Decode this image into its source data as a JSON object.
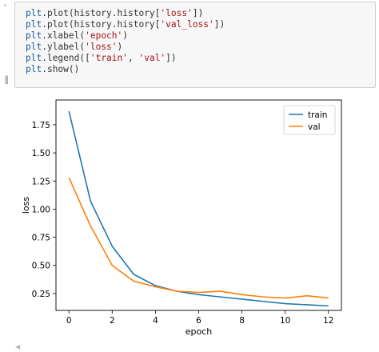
{
  "notebook": {
    "code_cell": {
      "lines": [
        [
          {
            "t": "plt",
            "c": "k"
          },
          {
            "t": ".plot(history.history[",
            "c": "p"
          },
          {
            "t": "'loss'",
            "c": "s"
          },
          {
            "t": "])",
            "c": "p"
          }
        ],
        [
          {
            "t": "plt",
            "c": "k"
          },
          {
            "t": ".plot(history.history[",
            "c": "p"
          },
          {
            "t": "'val_loss'",
            "c": "s"
          },
          {
            "t": "])",
            "c": "p"
          }
        ],
        [
          {
            "t": "plt",
            "c": "k"
          },
          {
            "t": ".xlabel(",
            "c": "p"
          },
          {
            "t": "'epoch'",
            "c": "s"
          },
          {
            "t": ")",
            "c": "p"
          }
        ],
        [
          {
            "t": "plt",
            "c": "k"
          },
          {
            "t": ".ylabel(",
            "c": "p"
          },
          {
            "t": "'loss'",
            "c": "s"
          },
          {
            "t": ")",
            "c": "p"
          }
        ],
        [
          {
            "t": "plt",
            "c": "k"
          },
          {
            "t": ".legend([",
            "c": "p"
          },
          {
            "t": "'train'",
            "c": "s"
          },
          {
            "t": ", ",
            "c": "p"
          },
          {
            "t": "'val'",
            "c": "s"
          },
          {
            "t": "])",
            "c": "p"
          }
        ],
        [
          {
            "t": "plt",
            "c": "k"
          },
          {
            "t": ".show()",
            "c": "p"
          }
        ]
      ]
    },
    "colors": {
      "cell_bg": "#f7f7f7",
      "keyword": "#1a5a9c",
      "string": "#a31515"
    }
  },
  "chart_data": {
    "type": "line",
    "xlabel": "epoch",
    "ylabel": "loss",
    "xlim": [
      -0.6,
      12.6
    ],
    "ylim": [
      0.1,
      1.97
    ],
    "xticks": [
      0,
      2,
      4,
      6,
      8,
      10,
      12
    ],
    "xtick_labels": [
      "0",
      "2",
      "4",
      "6",
      "8",
      "10",
      "12"
    ],
    "yticks": [
      0.25,
      0.5,
      0.75,
      1.0,
      1.25,
      1.5,
      1.75
    ],
    "ytick_labels": [
      "0.25",
      "0.50",
      "0.75",
      "1.00",
      "1.25",
      "1.50",
      "1.75"
    ],
    "legend_position": "top-right",
    "grid": false,
    "x": [
      0,
      1,
      2,
      3,
      4,
      5,
      6,
      7,
      8,
      9,
      10,
      11,
      12
    ],
    "series": [
      {
        "name": "train",
        "color": "#1f77b4",
        "values": [
          1.87,
          1.07,
          0.67,
          0.42,
          0.32,
          0.27,
          0.24,
          0.22,
          0.2,
          0.18,
          0.16,
          0.15,
          0.14
        ]
      },
      {
        "name": "val",
        "color": "#ff7f0e",
        "values": [
          1.28,
          0.85,
          0.5,
          0.36,
          0.31,
          0.27,
          0.26,
          0.27,
          0.24,
          0.22,
          0.21,
          0.23,
          0.21
        ]
      }
    ]
  }
}
